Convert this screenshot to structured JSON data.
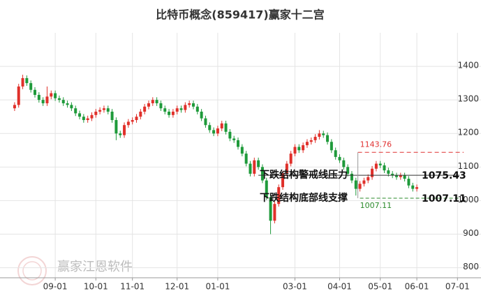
{
  "chart_data": {
    "type": "candlestick",
    "title": "比特币概念(859417)赢家十二宫",
    "watermark": "赢家江恩软件",
    "up_color": "#e0302a",
    "down_color": "#1e9a3a",
    "grid": true,
    "ylim": [
      770,
      1500
    ],
    "yticks": [
      800,
      900,
      1000,
      1100,
      1200,
      1300,
      1400
    ],
    "categories": [
      null,
      null,
      null,
      null,
      null,
      null,
      null,
      null,
      null,
      null,
      "09-01",
      null,
      null,
      null,
      null,
      null,
      null,
      null,
      null,
      null,
      "10-01",
      null,
      null,
      null,
      null,
      null,
      null,
      null,
      null,
      "11-01",
      null,
      null,
      null,
      null,
      null,
      null,
      null,
      null,
      null,
      null,
      "12-01",
      null,
      null,
      null,
      null,
      null,
      null,
      null,
      null,
      null,
      "01-01",
      null,
      null,
      null,
      null,
      null,
      null,
      null,
      null,
      null,
      null,
      null,
      null,
      null,
      null,
      null,
      null,
      null,
      null,
      "03-01",
      null,
      null,
      null,
      null,
      null,
      null,
      null,
      null,
      null,
      null,
      "04-01",
      null,
      null,
      null,
      null,
      null,
      null,
      null,
      null,
      null,
      "05-01",
      null,
      null,
      null,
      null,
      null,
      null,
      null,
      null,
      "06-01",
      null,
      null,
      null,
      null,
      null,
      null,
      null,
      null,
      null,
      "07-01"
    ],
    "open": [
      1275,
      1285,
      1340,
      1365,
      1350,
      1330,
      1315,
      1300,
      1290,
      1310,
      1320,
      1305,
      1300,
      1290,
      1285,
      1275,
      1260,
      1250,
      1240,
      1245,
      1255,
      1265,
      1270,
      1275,
      1265,
      1240,
      1200,
      1195,
      1225,
      1235,
      1240,
      1250,
      1265,
      1280,
      1290,
      1300,
      1290,
      1275,
      1265,
      1255,
      1265,
      1275,
      1270,
      1285,
      1290,
      1280,
      1265,
      1245,
      1225,
      1210,
      1200,
      1215,
      1230,
      1205,
      1185,
      1180,
      1160,
      1140,
      1110,
      1080,
      1120,
      1100,
      1060,
      1010,
      940,
      990,
      1040,
      1080,
      1110,
      1140,
      1160,
      1150,
      1165,
      1175,
      1180,
      1190,
      1200,
      1195,
      1175,
      1150,
      1130,
      1120,
      1100,
      1080,
      1060,
      1035,
      1050,
      1060,
      1070,
      1095,
      1110,
      1105,
      1090,
      1080,
      1075,
      1070,
      1075,
      1065,
      1045,
      1035,
      null,
      null,
      null,
      null,
      null,
      null,
      null,
      null,
      null,
      null
    ],
    "high": [
      1293,
      1348,
      1375,
      1373,
      1358,
      1338,
      1323,
      1308,
      1340,
      1328,
      1328,
      1313,
      1308,
      1298,
      1293,
      1283,
      1268,
      1258,
      1253,
      1263,
      1273,
      1278,
      1283,
      1283,
      1273,
      1248,
      1208,
      1233,
      1243,
      1248,
      1258,
      1273,
      1288,
      1298,
      1308,
      1308,
      1298,
      1283,
      1273,
      1273,
      1283,
      1283,
      1293,
      1298,
      1298,
      1288,
      1273,
      1253,
      1233,
      1218,
      1223,
      1238,
      1238,
      1213,
      1193,
      1188,
      1168,
      1148,
      1118,
      1128,
      1128,
      1108,
      1068,
      1018,
      998,
      1048,
      1088,
      1118,
      1148,
      1168,
      1168,
      1173,
      1183,
      1188,
      1198,
      1210,
      1208,
      1203,
      1183,
      1158,
      1138,
      1128,
      1108,
      1088,
      1068,
      1058,
      1068,
      1078,
      1103,
      1118,
      1118,
      1113,
      1098,
      1088,
      1083,
      1083,
      1083,
      1073,
      1053,
      1048,
      null,
      null,
      null,
      null,
      null,
      null,
      null,
      null,
      null,
      null
    ],
    "low": [
      1267,
      1277,
      1332,
      1342,
      1322,
      1307,
      1292,
      1282,
      1282,
      1302,
      1297,
      1292,
      1282,
      1277,
      1267,
      1252,
      1242,
      1232,
      1232,
      1237,
      1247,
      1257,
      1262,
      1257,
      1232,
      1180,
      1187,
      1187,
      1217,
      1227,
      1232,
      1242,
      1257,
      1272,
      1282,
      1282,
      1267,
      1257,
      1247,
      1247,
      1257,
      1262,
      1262,
      1277,
      1272,
      1257,
      1237,
      1217,
      1202,
      1192,
      1192,
      1207,
      1197,
      1177,
      1172,
      1152,
      1132,
      1102,
      1072,
      1072,
      1092,
      1052,
      1002,
      900,
      932,
      982,
      1032,
      1072,
      1102,
      1132,
      1142,
      1142,
      1157,
      1167,
      1172,
      1182,
      1187,
      1167,
      1142,
      1122,
      1112,
      1092,
      1072,
      1052,
      1015,
      1027,
      1042,
      1052,
      1062,
      1087,
      1097,
      1082,
      1072,
      1067,
      1062,
      1062,
      1057,
      1037,
      1027,
      1027,
      null,
      null,
      null,
      null,
      null,
      null,
      null,
      null,
      null,
      null
    ],
    "close": [
      1285,
      1340,
      1365,
      1350,
      1330,
      1315,
      1300,
      1290,
      1310,
      1320,
      1305,
      1300,
      1290,
      1285,
      1275,
      1260,
      1250,
      1240,
      1245,
      1255,
      1265,
      1270,
      1275,
      1265,
      1240,
      1200,
      1195,
      1225,
      1235,
      1240,
      1250,
      1265,
      1280,
      1290,
      1300,
      1290,
      1275,
      1265,
      1255,
      1265,
      1275,
      1270,
      1285,
      1290,
      1280,
      1265,
      1245,
      1225,
      1210,
      1200,
      1215,
      1230,
      1205,
      1185,
      1180,
      1160,
      1140,
      1110,
      1080,
      1120,
      1100,
      1060,
      1010,
      940,
      990,
      1040,
      1080,
      1110,
      1140,
      1160,
      1150,
      1165,
      1175,
      1180,
      1190,
      1200,
      1195,
      1175,
      1150,
      1130,
      1120,
      1100,
      1080,
      1060,
      1035,
      1050,
      1060,
      1070,
      1095,
      1110,
      1105,
      1090,
      1080,
      1075,
      1070,
      1075,
      1065,
      1045,
      1035,
      1040,
      null,
      null,
      null,
      null,
      null,
      null,
      null,
      null,
      null,
      null
    ],
    "resistance": {
      "value": 1143.76,
      "color": "#e03030"
    },
    "levels": [
      {
        "name": "下跌结构警戒线压力",
        "value": 1075.43,
        "color": "#333333"
      },
      {
        "name": "下跌结构底部线支撑",
        "value": 1007.11,
        "color": "#2a8a2a"
      }
    ]
  }
}
